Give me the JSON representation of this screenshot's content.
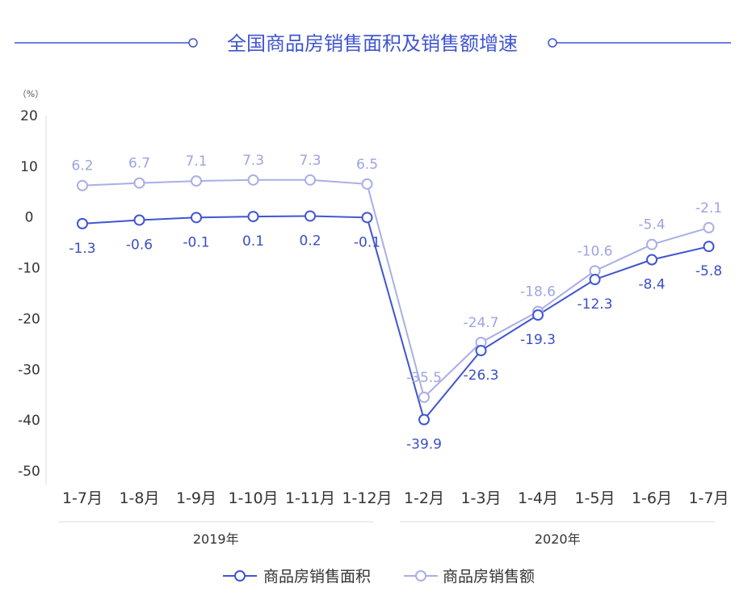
{
  "title": "全国商品房销售面积及销售额增速",
  "colors": {
    "title": "#3F55D0",
    "area": "#3F55D0",
    "amount": "#A9AEE6",
    "axis": "#DDDDDD",
    "label_area": "#3A4FC4",
    "label_amount": "#9EA4E0"
  },
  "chart_data": {
    "type": "line",
    "title": "全国商品房销售面积及销售额增速",
    "y_unit": "（%）",
    "ylim": [
      -50,
      20
    ],
    "yticks": [
      20,
      10,
      0,
      -10,
      -20,
      -30,
      -40,
      -50
    ],
    "categories": [
      "1-7月",
      "1-8月",
      "1-9月",
      "1-10月",
      "1-11月",
      "1-12月",
      "1-2月",
      "1-3月",
      "1-4月",
      "1-5月",
      "1-6月",
      "1-7月"
    ],
    "year_groups": [
      {
        "label": "2019年",
        "start": 0,
        "end": 5
      },
      {
        "label": "2020年",
        "start": 6,
        "end": 11
      }
    ],
    "series": [
      {
        "name": "商品房销售面积",
        "values": [
          -1.3,
          -0.6,
          -0.1,
          0.1,
          0.2,
          -0.1,
          -39.9,
          -26.3,
          -19.3,
          -12.3,
          -8.4,
          -5.8
        ]
      },
      {
        "name": "商品房销售额",
        "values": [
          6.2,
          6.7,
          7.1,
          7.3,
          7.3,
          6.5,
          -35.5,
          -24.7,
          -18.6,
          -10.6,
          -5.4,
          -2.1
        ]
      }
    ],
    "legend_position": "bottom",
    "grid": false
  }
}
